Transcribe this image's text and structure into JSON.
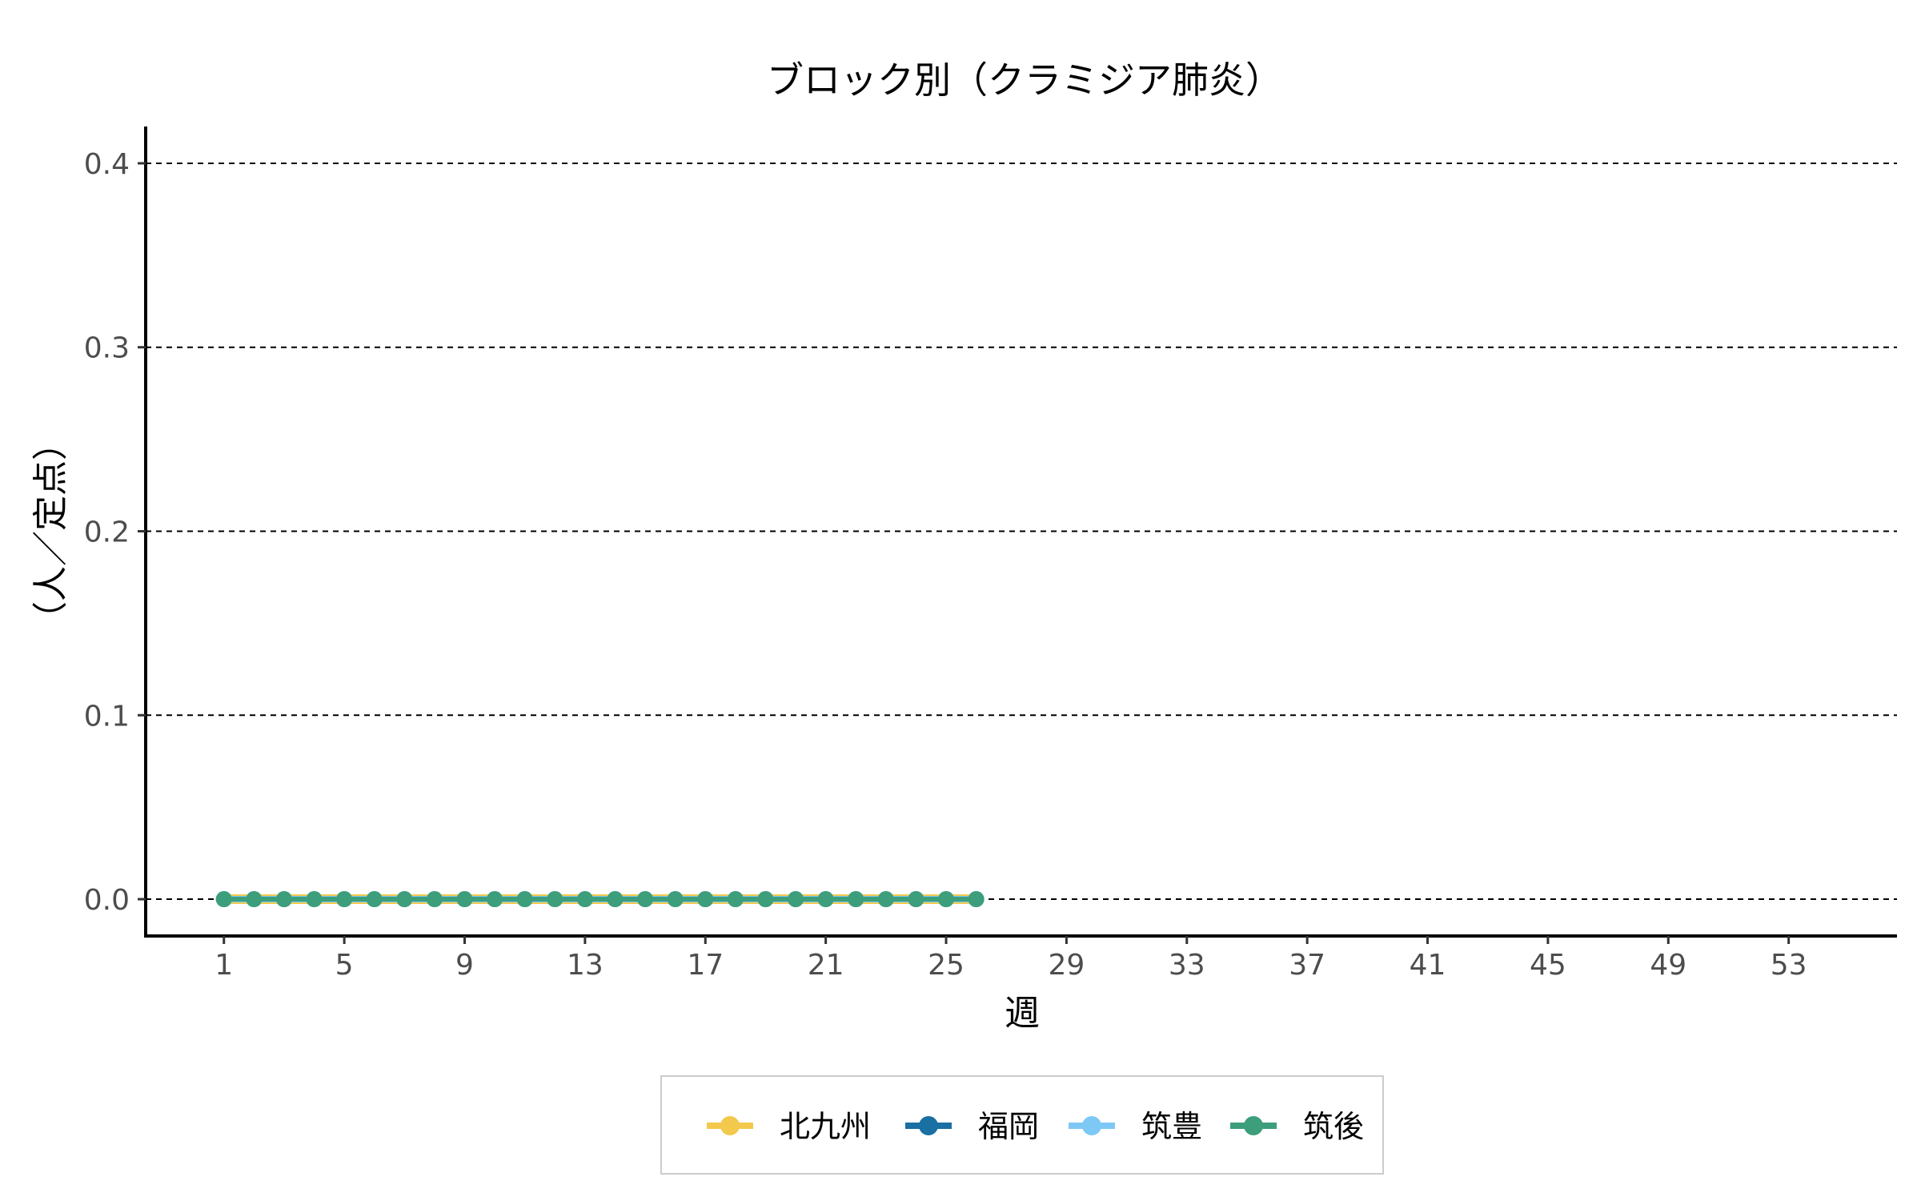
{
  "chart_data": {
    "type": "line",
    "title": "ブロック別（クラミジア肺炎）",
    "xlabel": "週",
    "ylabel": "（人／定点）",
    "x_ticks": [
      "1",
      "5",
      "9",
      "13",
      "17",
      "21",
      "25",
      "29",
      "33",
      "37",
      "41",
      "45",
      "49",
      "53"
    ],
    "y_ticks": [
      "0.0",
      "0.1",
      "0.2",
      "0.3",
      "0.4"
    ],
    "xlim": [
      -1.6,
      56.6
    ],
    "ylim": [
      -0.02,
      0.42
    ],
    "grid": "horizontal dashed",
    "legend_position": "bottom",
    "x": [
      1,
      2,
      3,
      4,
      5,
      6,
      7,
      8,
      9,
      10,
      11,
      12,
      13,
      14,
      15,
      16,
      17,
      18,
      19,
      20,
      21,
      22,
      23,
      24,
      25,
      26
    ],
    "series": [
      {
        "name": "北九州",
        "color": "#f2c94c",
        "values": [
          0,
          0,
          0,
          0,
          0,
          0,
          0,
          0,
          0,
          0,
          0,
          0,
          0,
          0,
          0,
          0,
          0,
          0,
          0,
          0,
          0,
          0,
          0,
          0,
          0,
          0
        ]
      },
      {
        "name": "福岡",
        "color": "#1a6fa3",
        "values": [
          0,
          0,
          0,
          0,
          0,
          0,
          0,
          0,
          0,
          0,
          0,
          0,
          0,
          0,
          0,
          0,
          0,
          0,
          0,
          0,
          0,
          0,
          0,
          0,
          0,
          0
        ]
      },
      {
        "name": "筑豊",
        "color": "#7ec8f5",
        "values": [
          0,
          0,
          0,
          0,
          0,
          0,
          0,
          0,
          0,
          0,
          0,
          0,
          0,
          0,
          0,
          0,
          0,
          0,
          0,
          0,
          0,
          0,
          0,
          0,
          0,
          0
        ]
      },
      {
        "name": "筑後",
        "color": "#3d9e7c",
        "values": [
          0,
          0,
          0,
          0,
          0,
          0,
          0,
          0,
          0,
          0,
          0,
          0,
          0,
          0,
          0,
          0,
          0,
          0,
          0,
          0,
          0,
          0,
          0,
          0,
          0,
          0
        ]
      }
    ]
  }
}
